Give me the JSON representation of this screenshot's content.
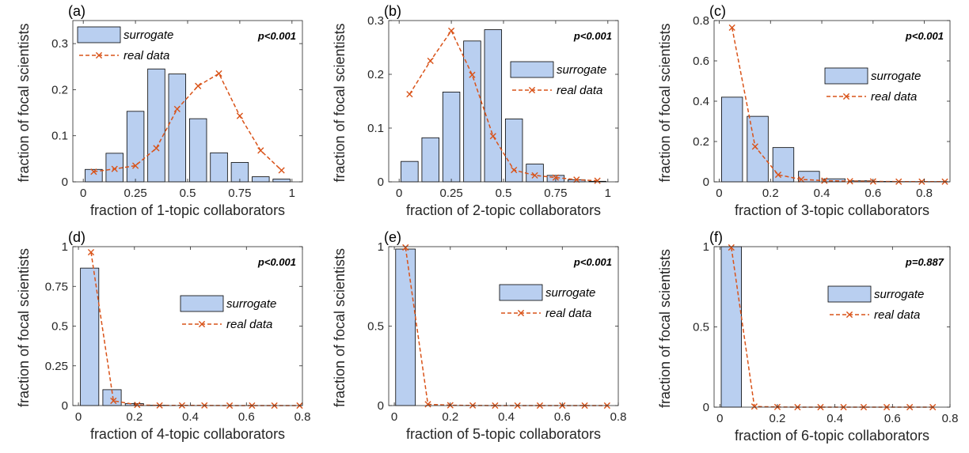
{
  "chart_data": [
    {
      "type": "bar",
      "panel_label": "(a)",
      "xlabel": "fraction of 1-topic collaborators",
      "ylabel": "fraction of focal scientists",
      "xlim": [
        -0.05,
        1.05
      ],
      "ylim": [
        0,
        0.35
      ],
      "xticks": [
        0,
        0.25,
        0.5,
        0.75,
        1
      ],
      "xtick_labels": [
        "0",
        "0.25",
        "0.5",
        "0.75",
        "1"
      ],
      "yticks": [
        0,
        0.1,
        0.2,
        0.3
      ],
      "ytick_labels": [
        "0",
        "0.1",
        "0.2",
        "0.3"
      ],
      "pvalue": "p<0.001",
      "legend_position": "top",
      "series": [
        {
          "name": "surrogate",
          "kind": "bar",
          "x": [
            0.05,
            0.15,
            0.25,
            0.35,
            0.45,
            0.55,
            0.65,
            0.75,
            0.85,
            0.95
          ],
          "values": [
            0.027,
            0.062,
            0.153,
            0.245,
            0.234,
            0.137,
            0.063,
            0.042,
            0.011,
            0.006
          ]
        },
        {
          "name": "real data",
          "kind": "line",
          "x": [
            0.05,
            0.15,
            0.25,
            0.35,
            0.45,
            0.55,
            0.65,
            0.75,
            0.85,
            0.95
          ],
          "values": [
            0.022,
            0.028,
            0.035,
            0.073,
            0.158,
            0.208,
            0.235,
            0.143,
            0.068,
            0.025
          ]
        }
      ]
    },
    {
      "type": "bar",
      "panel_label": "(b)",
      "xlabel": "fraction of 2-topic collaborators",
      "ylabel": "fraction of focal scientists",
      "xlim": [
        -0.05,
        1.05
      ],
      "ylim": [
        0,
        0.3
      ],
      "xticks": [
        0,
        0.25,
        0.5,
        0.75,
        1
      ],
      "xtick_labels": [
        "0",
        "0.25",
        "0.5",
        "0.75",
        "1"
      ],
      "yticks": [
        0,
        0.1,
        0.2,
        0.3
      ],
      "ytick_labels": [
        "0",
        "0.1",
        "0.2",
        "0.3"
      ],
      "pvalue": "p<0.001",
      "legend_position": "middle-right",
      "series": [
        {
          "name": "surrogate",
          "kind": "bar",
          "x": [
            0.05,
            0.15,
            0.25,
            0.35,
            0.45,
            0.55,
            0.65,
            0.75,
            0.85,
            0.95
          ],
          "values": [
            0.038,
            0.082,
            0.167,
            0.262,
            0.283,
            0.117,
            0.033,
            0.012,
            0.004,
            0.001
          ]
        },
        {
          "name": "real data",
          "kind": "line",
          "x": [
            0.05,
            0.15,
            0.25,
            0.35,
            0.45,
            0.55,
            0.65,
            0.75,
            0.85,
            0.95
          ],
          "values": [
            0.163,
            0.225,
            0.281,
            0.199,
            0.085,
            0.022,
            0.012,
            0.008,
            0.004,
            0.002
          ]
        }
      ]
    },
    {
      "type": "bar",
      "panel_label": "(c)",
      "xlabel": "fraction of 3-topic collaborators",
      "ylabel": "fraction of focal scientists",
      "xlim": [
        -0.02,
        0.9
      ],
      "ylim": [
        0,
        0.8
      ],
      "xticks": [
        0,
        0.2,
        0.4,
        0.6,
        0.8
      ],
      "xtick_labels": [
        "0",
        "0.2",
        "0.4",
        "0.6",
        "0.8"
      ],
      "yticks": [
        0,
        0.2,
        0.4,
        0.6,
        0.8
      ],
      "ytick_labels": [
        "0",
        "0.2",
        "0.4",
        "0.6",
        "0.8"
      ],
      "pvalue": "p<0.001",
      "legend_position": "middle-right",
      "series": [
        {
          "name": "surrogate",
          "kind": "bar",
          "x": [
            0.05,
            0.15,
            0.25,
            0.35,
            0.45,
            0.55,
            0.65,
            0.75,
            0.85
          ],
          "values": [
            0.42,
            0.325,
            0.17,
            0.052,
            0.015,
            0.005,
            0.002,
            0.001,
            0.001
          ]
        },
        {
          "name": "real data",
          "kind": "line",
          "x": [
            0.05,
            0.14,
            0.23,
            0.32,
            0.41,
            0.51,
            0.6,
            0.7,
            0.79,
            0.88
          ],
          "values": [
            0.765,
            0.175,
            0.035,
            0.012,
            0.006,
            0.003,
            0.002,
            0.001,
            0.001,
            0.001
          ]
        }
      ]
    },
    {
      "type": "bar",
      "panel_label": "(d)",
      "xlabel": "fraction of 4-topic collaborators",
      "ylabel": "fraction of focal scientists",
      "xlim": [
        -0.02,
        0.8
      ],
      "ylim": [
        0,
        1
      ],
      "xticks": [
        0,
        0.2,
        0.4,
        0.6,
        0.8
      ],
      "xtick_labels": [
        "0",
        "0.2",
        "0.4",
        "0.6",
        "0.8"
      ],
      "yticks": [
        0,
        0.25,
        0.5,
        0.75,
        1
      ],
      "ytick_labels": [
        "0",
        "0.25",
        "0.5",
        "0.75",
        "1"
      ],
      "pvalue": "p<0.001",
      "legend_position": "middle-right",
      "series": [
        {
          "name": "surrogate",
          "kind": "bar",
          "x": [
            0.04,
            0.12,
            0.2,
            0.28
          ],
          "values": [
            0.865,
            0.1,
            0.012,
            0.002
          ]
        },
        {
          "name": "real data",
          "kind": "line",
          "x": [
            0.045,
            0.125,
            0.21,
            0.29,
            0.37,
            0.45,
            0.54,
            0.62,
            0.7,
            0.79
          ],
          "values": [
            0.965,
            0.03,
            0.004,
            0.001,
            0.001,
            0.001,
            0.0,
            0.0,
            0.0,
            0.0
          ]
        }
      ]
    },
    {
      "type": "bar",
      "panel_label": "(e)",
      "xlabel": "fraction of 5-topic collaborators",
      "ylabel": "fraction of focal scientists",
      "xlim": [
        -0.02,
        0.8
      ],
      "ylim": [
        0,
        1
      ],
      "xticks": [
        0,
        0.2,
        0.4,
        0.6,
        0.8
      ],
      "xtick_labels": [
        "0",
        "0.2",
        "0.4",
        "0.6",
        "0.8"
      ],
      "yticks": [
        0,
        0.5,
        1
      ],
      "ytick_labels": [
        "0",
        "0.5",
        "1"
      ],
      "pvalue": "p<0.001",
      "legend_position": "middle-right",
      "series": [
        {
          "name": "surrogate",
          "kind": "bar",
          "x": [
            0.04
          ],
          "values": [
            0.985
          ]
        },
        {
          "name": "real data",
          "kind": "line",
          "x": [
            0.04,
            0.12,
            0.2,
            0.28,
            0.36,
            0.44,
            0.52,
            0.6,
            0.68,
            0.76
          ],
          "values": [
            0.995,
            0.008,
            0.002,
            0.001,
            0.0,
            0.0,
            0.0,
            0.0,
            0.0,
            0.0
          ]
        }
      ]
    },
    {
      "type": "bar",
      "panel_label": "(f)",
      "xlabel": "fraction of 6-topic collaborators",
      "ylabel": "fraction of focal scientists",
      "xlim": [
        -0.02,
        0.8
      ],
      "ylim": [
        0,
        1
      ],
      "xticks": [
        0,
        0.2,
        0.4,
        0.6,
        0.8
      ],
      "xtick_labels": [
        "0",
        "0.2",
        "0.4",
        "0.6",
        "0.8"
      ],
      "yticks": [
        0,
        0.5,
        1
      ],
      "ytick_labels": [
        "0",
        "0.5",
        "1"
      ],
      "pvalue": "p=0.887",
      "legend_position": "middle-right",
      "series": [
        {
          "name": "surrogate",
          "kind": "bar",
          "x": [
            0.04
          ],
          "values": [
            1.0
          ]
        },
        {
          "name": "real data",
          "kind": "line",
          "x": [
            0.04,
            0.12,
            0.2,
            0.27,
            0.35,
            0.43,
            0.5,
            0.58,
            0.66,
            0.74
          ],
          "values": [
            0.995,
            0.004,
            0.001,
            0.0,
            0.0,
            0.0,
            0.0,
            0.0,
            0.0,
            0.0
          ]
        }
      ]
    }
  ],
  "colors": {
    "bar_fill": "#b9cff0",
    "bar_edge": "#000000",
    "line": "#d95319",
    "axis": "#262626"
  }
}
